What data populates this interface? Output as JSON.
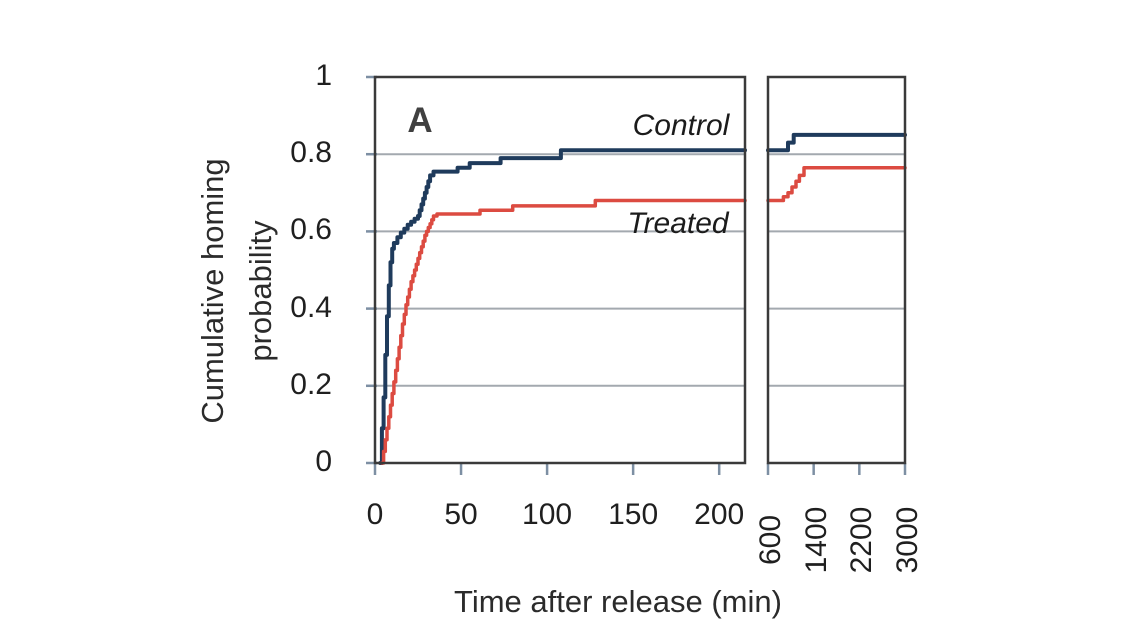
{
  "figure": {
    "panel_letter": "A",
    "x_axis_title": "Time after release (min)",
    "y_axis_title_line1": "Cumulative homing",
    "y_axis_title_line2": "probability"
  },
  "chart_data": {
    "type": "line",
    "subtype": "step-after-cumulative-survival",
    "title": "",
    "xlabel": "Time after release (min)",
    "ylabel": "Cumulative homing probability",
    "ylim": [
      0,
      1
    ],
    "grid": "horizontal-only",
    "grid_y_values": [
      0.2,
      0.4,
      0.6,
      0.8
    ],
    "y_ticks": [
      {
        "value": 0,
        "label": "0"
      },
      {
        "value": 0.2,
        "label": "0.2"
      },
      {
        "value": 0.4,
        "label": "0.4"
      },
      {
        "value": 0.6,
        "label": "0.6"
      },
      {
        "value": 0.8,
        "label": "0.8"
      },
      {
        "value": 1,
        "label": "1"
      }
    ],
    "panels": [
      {
        "id": "main",
        "x_range": [
          0,
          215
        ],
        "x_ticks": [
          {
            "value": 0,
            "label": "0"
          },
          {
            "value": 50,
            "label": "50"
          },
          {
            "value": 100,
            "label": "100"
          },
          {
            "value": 150,
            "label": "150"
          },
          {
            "value": 200,
            "label": "200"
          }
        ],
        "tick_label_rotation": 0
      },
      {
        "id": "extended-broken-axis",
        "x_range": [
          600,
          3000
        ],
        "x_ticks": [
          {
            "value": 600,
            "label": "600"
          },
          {
            "value": 1400,
            "label": "1400"
          },
          {
            "value": 2200,
            "label": "2200"
          },
          {
            "value": 3000,
            "label": "3000"
          }
        ],
        "tick_label_rotation": -90
      }
    ],
    "series": [
      {
        "name": "Control",
        "color": "#1f3b5c",
        "line_width": 4,
        "panel_points": [
          [
            [
              3,
              0
            ],
            [
              4,
              0.09
            ],
            [
              5,
              0.17
            ],
            [
              6,
              0.28
            ],
            [
              7,
              0.38
            ],
            [
              8,
              0.46
            ],
            [
              9,
              0.52
            ],
            [
              10,
              0.555
            ],
            [
              11,
              0.57
            ],
            [
              13,
              0.585
            ],
            [
              15,
              0.597
            ],
            [
              17,
              0.607
            ],
            [
              19,
              0.617
            ],
            [
              21,
              0.625
            ],
            [
              23,
              0.633
            ],
            [
              25,
              0.64
            ],
            [
              26,
              0.655
            ],
            [
              27,
              0.67
            ],
            [
              28,
              0.685
            ],
            [
              29,
              0.7
            ],
            [
              30,
              0.715
            ],
            [
              31,
              0.73
            ],
            [
              32,
              0.745
            ],
            [
              34,
              0.755
            ],
            [
              48,
              0.765
            ],
            [
              55,
              0.777
            ],
            [
              73,
              0.79
            ],
            [
              108,
              0.81
            ],
            [
              215,
              0.81
            ]
          ],
          [
            [
              600,
              0.81
            ],
            [
              950,
              0.83
            ],
            [
              1050,
              0.85
            ],
            [
              3000,
              0.85
            ]
          ]
        ]
      },
      {
        "name": "Treated",
        "color": "#dc4b41",
        "line_width": 3.5,
        "panel_points": [
          [
            [
              4,
              0
            ],
            [
              5,
              0.03
            ],
            [
              6,
              0.06
            ],
            [
              7,
              0.09
            ],
            [
              8,
              0.12
            ],
            [
              9,
              0.15
            ],
            [
              10,
              0.18
            ],
            [
              11,
              0.21
            ],
            [
              12,
              0.24
            ],
            [
              13,
              0.27
            ],
            [
              14,
              0.3
            ],
            [
              15,
              0.33
            ],
            [
              16,
              0.36
            ],
            [
              17,
              0.385
            ],
            [
              18,
              0.41
            ],
            [
              19,
              0.43
            ],
            [
              20,
              0.45
            ],
            [
              21,
              0.47
            ],
            [
              22,
              0.485
            ],
            [
              23,
              0.5
            ],
            [
              24,
              0.515
            ],
            [
              25,
              0.53
            ],
            [
              26,
              0.545
            ],
            [
              27,
              0.56
            ],
            [
              28,
              0.575
            ],
            [
              29,
              0.59
            ],
            [
              30,
              0.6
            ],
            [
              31,
              0.61
            ],
            [
              32,
              0.62
            ],
            [
              33,
              0.63
            ],
            [
              34,
              0.64
            ],
            [
              36,
              0.645
            ],
            [
              61,
              0.655
            ],
            [
              80,
              0.666
            ],
            [
              128,
              0.68
            ],
            [
              215,
              0.68
            ]
          ],
          [
            [
              600,
              0.68
            ],
            [
              870,
              0.69
            ],
            [
              950,
              0.7
            ],
            [
              1020,
              0.715
            ],
            [
              1090,
              0.73
            ],
            [
              1150,
              0.745
            ],
            [
              1230,
              0.765
            ],
            [
              3000,
              0.765
            ]
          ]
        ]
      }
    ],
    "colors": {
      "control_line": "#1f3b5c",
      "treated_line": "#dc4b41",
      "gridline": "#a3a9af",
      "frame": "#3a3a3a",
      "tick_mark": "#7d8fa3",
      "text": "#262626"
    },
    "legend_position": "labels-inside-plot"
  }
}
